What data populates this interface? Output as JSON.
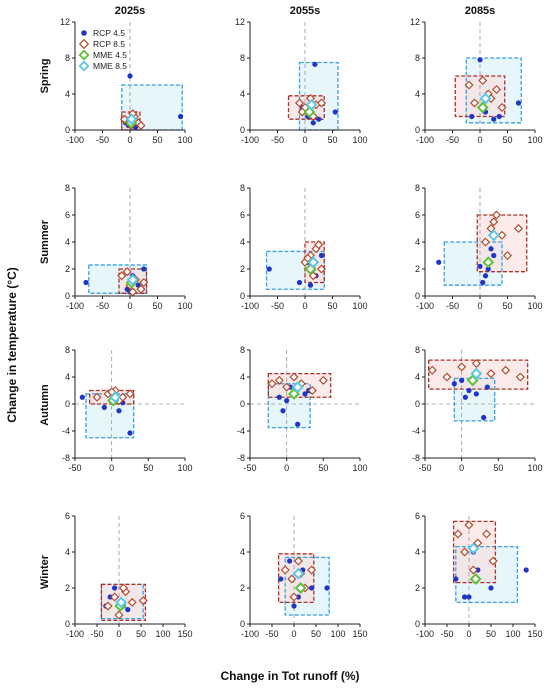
{
  "figure": {
    "ylabel": "Change in temperature (°C)",
    "xlabel": "Change in Tot runoff (%)",
    "columns": [
      "2025s",
      "2055s",
      "2085s"
    ],
    "rows": [
      "Spring",
      "Summer",
      "Autumn",
      "Winter"
    ],
    "legend": [
      "RCP 4.5",
      "RCP 8.5",
      "MME 4.5",
      "MME 8.5"
    ],
    "colors": {
      "rcp45": "#1f35c8",
      "rcp85": "#b5492a",
      "mme45": "#5cc23a",
      "mme85": "#5bc8e8",
      "box45": "#3aa0e0",
      "box85": "#a83228",
      "fill45": "#d6f0f8",
      "fill85": "#f8dcdc"
    }
  },
  "chart_data": [
    {
      "type": "scatter",
      "season": "Spring",
      "period": "2025s",
      "xlim": [
        -100,
        100
      ],
      "ylim": [
        0,
        12
      ],
      "xticks": [
        -100,
        -50,
        0,
        50,
        100
      ],
      "yticks": [
        0,
        4,
        8,
        12
      ],
      "series": [
        {
          "name": "RCP 4.5",
          "x": [
            0,
            5,
            92,
            -8,
            3,
            10,
            -3
          ],
          "y": [
            6,
            0.5,
            1.5,
            0.8,
            1.2,
            0.3,
            0.5
          ]
        },
        {
          "name": "RCP 8.5",
          "x": [
            -5,
            8,
            15,
            2,
            -10,
            20,
            5
          ],
          "y": [
            1,
            1.5,
            0.8,
            0.5,
            1.2,
            0.5,
            1.8
          ]
        },
        {
          "name": "MME 4.5",
          "x": [
            2
          ],
          "y": [
            0.8
          ]
        },
        {
          "name": "MME 8.5",
          "x": [
            3
          ],
          "y": [
            1.2
          ]
        }
      ],
      "box45": {
        "x": [
          -15,
          95
        ],
        "y": [
          0,
          5
        ]
      },
      "box85": {
        "x": [
          -15,
          18
        ],
        "y": [
          0,
          2
        ]
      }
    },
    {
      "type": "scatter",
      "season": "Spring",
      "period": "2055s",
      "xlim": [
        -100,
        100
      ],
      "ylim": [
        0,
        12
      ],
      "xticks": [
        -100,
        -50,
        0,
        50,
        100
      ],
      "yticks": [
        0,
        4,
        8,
        12
      ],
      "series": [
        {
          "name": "RCP 4.5",
          "x": [
            18,
            5,
            -5,
            25,
            10,
            15,
            55
          ],
          "y": [
            7.3,
            1.5,
            2.5,
            1.2,
            2,
            0.8,
            2
          ]
        },
        {
          "name": "RCP 8.5",
          "x": [
            -10,
            0,
            10,
            20,
            30,
            -5,
            15
          ],
          "y": [
            3,
            2.5,
            3.5,
            2.8,
            3,
            2,
            1.5
          ]
        },
        {
          "name": "MME 4.5",
          "x": [
            8
          ],
          "y": [
            2
          ]
        },
        {
          "name": "MME 8.5",
          "x": [
            12
          ],
          "y": [
            2.8
          ]
        }
      ],
      "box45": {
        "x": [
          -10,
          60
        ],
        "y": [
          0,
          7.5
        ]
      },
      "box85": {
        "x": [
          -30,
          35
        ],
        "y": [
          1.2,
          3.8
        ]
      }
    },
    {
      "type": "scatter",
      "season": "Spring",
      "period": "2085s",
      "xlim": [
        -100,
        100
      ],
      "ylim": [
        0,
        12
      ],
      "xticks": [
        -100,
        -50,
        0,
        50,
        100
      ],
      "yticks": [
        0,
        4,
        8,
        12
      ],
      "series": [
        {
          "name": "RCP 4.5",
          "x": [
            0,
            10,
            -15,
            25,
            70,
            5,
            35
          ],
          "y": [
            7.8,
            2,
            1.5,
            1.2,
            3,
            2.5,
            1.5
          ]
        },
        {
          "name": "RCP 8.5",
          "x": [
            -20,
            -10,
            5,
            15,
            30,
            20,
            40
          ],
          "y": [
            5,
            3,
            5.5,
            4,
            4.5,
            3.5,
            2.5
          ]
        },
        {
          "name": "MME 4.5",
          "x": [
            5
          ],
          "y": [
            2.5
          ]
        },
        {
          "name": "MME 8.5",
          "x": [
            10
          ],
          "y": [
            3.5
          ]
        }
      ],
      "box45": {
        "x": [
          -25,
          75
        ],
        "y": [
          0.8,
          8
        ]
      },
      "box85": {
        "x": [
          -45,
          45
        ],
        "y": [
          1.5,
          6
        ]
      }
    },
    {
      "type": "scatter",
      "season": "Summer",
      "period": "2025s",
      "xlim": [
        -100,
        100
      ],
      "ylim": [
        0,
        8
      ],
      "xticks": [
        -100,
        -50,
        0,
        50,
        100
      ],
      "yticks": [
        0,
        2,
        4,
        6,
        8
      ],
      "series": [
        {
          "name": "RCP 4.5",
          "x": [
            -80,
            -5,
            10,
            25,
            5,
            0,
            15
          ],
          "y": [
            1,
            0.5,
            1.2,
            2,
            1.5,
            0.3,
            0.8
          ]
        },
        {
          "name": "RCP 8.5",
          "x": [
            -15,
            0,
            10,
            20,
            -5,
            5,
            25
          ],
          "y": [
            1.5,
            0.8,
            1.2,
            0.5,
            1.8,
            0.3,
            1
          ]
        },
        {
          "name": "MME 4.5",
          "x": [
            3
          ],
          "y": [
            1
          ]
        },
        {
          "name": "MME 8.5",
          "x": [
            5
          ],
          "y": [
            1.2
          ]
        }
      ],
      "box45": {
        "x": [
          -75,
          30
        ],
        "y": [
          0.2,
          2.3
        ]
      },
      "box85": {
        "x": [
          -20,
          30
        ],
        "y": [
          0.2,
          2
        ]
      }
    },
    {
      "type": "scatter",
      "season": "Summer",
      "period": "2055s",
      "xlim": [
        -100,
        100
      ],
      "ylim": [
        0,
        8
      ],
      "xticks": [
        -100,
        -50,
        0,
        50,
        100
      ],
      "yticks": [
        0,
        2,
        4,
        6,
        8
      ],
      "series": [
        {
          "name": "RCP 4.5",
          "x": [
            -65,
            -10,
            5,
            20,
            30,
            10,
            15
          ],
          "y": [
            2,
            1,
            2.5,
            1.5,
            3,
            0.8,
            2
          ]
        },
        {
          "name": "RCP 8.5",
          "x": [
            0,
            10,
            20,
            30,
            15,
            5,
            25
          ],
          "y": [
            2.5,
            3,
            3.5,
            2,
            1.5,
            2.8,
            3.8
          ]
        },
        {
          "name": "MME 4.5",
          "x": [
            10
          ],
          "y": [
            2
          ]
        },
        {
          "name": "MME 8.5",
          "x": [
            15
          ],
          "y": [
            2.5
          ]
        }
      ],
      "box45": {
        "x": [
          -70,
          35
        ],
        "y": [
          0.5,
          3.3
        ]
      },
      "box85": {
        "x": [
          0,
          35
        ],
        "y": [
          1,
          4
        ]
      }
    },
    {
      "type": "scatter",
      "season": "Summer",
      "period": "2085s",
      "xlim": [
        -100,
        100
      ],
      "ylim": [
        0,
        8
      ],
      "xticks": [
        -100,
        -50,
        0,
        50,
        100
      ],
      "yticks": [
        0,
        2,
        4,
        6,
        8
      ],
      "series": [
        {
          "name": "RCP 4.5",
          "x": [
            -75,
            5,
            15,
            25,
            10,
            0,
            20
          ],
          "y": [
            2.5,
            1,
            2,
            3,
            1.5,
            2.2,
            3.5
          ]
        },
        {
          "name": "RCP 8.5",
          "x": [
            10,
            20,
            30,
            40,
            50,
            70,
            25
          ],
          "y": [
            4,
            5,
            6,
            4.5,
            3,
            5,
            5.5
          ]
        },
        {
          "name": "MME 4.5",
          "x": [
            15
          ],
          "y": [
            2.5
          ]
        },
        {
          "name": "MME 8.5",
          "x": [
            25
          ],
          "y": [
            4.5
          ]
        }
      ],
      "box45": {
        "x": [
          -65,
          40
        ],
        "y": [
          0.8,
          4
        ]
      },
      "box85": {
        "x": [
          -5,
          85
        ],
        "y": [
          1.8,
          6
        ]
      }
    },
    {
      "type": "scatter",
      "season": "Autumn",
      "period": "2025s",
      "xlim": [
        -50,
        100
      ],
      "ylim": [
        -8,
        8
      ],
      "xticks": [
        -50,
        0,
        50,
        100
      ],
      "yticks": [
        -8,
        -4,
        0,
        4,
        8
      ],
      "series": [
        {
          "name": "RCP 4.5",
          "x": [
            -40,
            25,
            0,
            5,
            -10,
            15,
            10
          ],
          "y": [
            1,
            -4.3,
            0.5,
            1,
            -0.5,
            0.2,
            -1
          ]
        },
        {
          "name": "RCP 8.5",
          "x": [
            -20,
            -5,
            5,
            15,
            25,
            10,
            0
          ],
          "y": [
            1,
            1.5,
            2,
            1,
            1.5,
            0.5,
            1.8
          ]
        },
        {
          "name": "MME 4.5",
          "x": [
            2
          ],
          "y": [
            0.5
          ]
        },
        {
          "name": "MME 8.5",
          "x": [
            5
          ],
          "y": [
            1
          ]
        }
      ],
      "box45": {
        "x": [
          -35,
          30
        ],
        "y": [
          -5,
          1.5
        ]
      },
      "box85": {
        "x": [
          -30,
          30
        ],
        "y": [
          0,
          2
        ]
      }
    },
    {
      "type": "scatter",
      "season": "Autumn",
      "period": "2055s",
      "xlim": [
        -50,
        100
      ],
      "ylim": [
        -8,
        8
      ],
      "xticks": [
        -50,
        0,
        50,
        100
      ],
      "yticks": [
        -8,
        -4,
        0,
        4,
        8
      ],
      "series": [
        {
          "name": "RCP 4.5",
          "x": [
            15,
            -10,
            5,
            25,
            0,
            30,
            -5
          ],
          "y": [
            -3,
            1,
            2.5,
            1.5,
            0.5,
            2,
            -1
          ]
        },
        {
          "name": "RCP 8.5",
          "x": [
            -20,
            -10,
            0,
            10,
            20,
            35,
            50
          ],
          "y": [
            3,
            3.5,
            2.5,
            4,
            3,
            2,
            3.5
          ]
        },
        {
          "name": "MME 4.5",
          "x": [
            10
          ],
          "y": [
            1.5
          ]
        },
        {
          "name": "MME 8.5",
          "x": [
            15
          ],
          "y": [
            2.5
          ]
        }
      ],
      "box45": {
        "x": [
          -25,
          32
        ],
        "y": [
          -3.5,
          3
        ]
      },
      "box85": {
        "x": [
          -25,
          60
        ],
        "y": [
          1,
          4.5
        ]
      }
    },
    {
      "type": "scatter",
      "season": "Autumn",
      "period": "2085s",
      "xlim": [
        -50,
        100
      ],
      "ylim": [
        -8,
        8
      ],
      "xticks": [
        -50,
        0,
        50,
        100
      ],
      "yticks": [
        -8,
        -4,
        0,
        4,
        8
      ],
      "series": [
        {
          "name": "RCP 4.5",
          "x": [
            30,
            -10,
            10,
            20,
            0,
            35,
            5
          ],
          "y": [
            -2,
            3,
            2,
            1.5,
            3.5,
            2.5,
            1
          ]
        },
        {
          "name": "RCP 8.5",
          "x": [
            -40,
            -20,
            0,
            20,
            40,
            60,
            80
          ],
          "y": [
            5,
            4,
            5.5,
            6,
            4.5,
            5,
            4
          ]
        },
        {
          "name": "MME 4.5",
          "x": [
            15
          ],
          "y": [
            3.5
          ]
        },
        {
          "name": "MME 8.5",
          "x": [
            20
          ],
          "y": [
            4.5
          ]
        }
      ],
      "box45": {
        "x": [
          -10,
          45
        ],
        "y": [
          -2.5,
          3.8
        ]
      },
      "box85": {
        "x": [
          -45,
          90
        ],
        "y": [
          2.2,
          6.5
        ]
      }
    },
    {
      "type": "scatter",
      "season": "Winter",
      "period": "2025s",
      "xlim": [
        -100,
        150
      ],
      "ylim": [
        0,
        6
      ],
      "xticks": [
        -100,
        -50,
        0,
        50,
        100,
        150
      ],
      "yticks": [
        0,
        2,
        4,
        6
      ],
      "series": [
        {
          "name": "RCP 4.5",
          "x": [
            -20,
            0,
            10,
            -10,
            20,
            5,
            -30
          ],
          "y": [
            1.5,
            0.5,
            1,
            2,
            0.8,
            1.2,
            1
          ]
        },
        {
          "name": "RCP 8.5",
          "x": [
            -25,
            -10,
            0,
            15,
            30,
            55,
            10
          ],
          "y": [
            1,
            1.5,
            0.5,
            1.8,
            1.2,
            1.3,
            2
          ]
        },
        {
          "name": "MME 4.5",
          "x": [
            3
          ],
          "y": [
            1
          ]
        },
        {
          "name": "MME 8.5",
          "x": [
            5
          ],
          "y": [
            1.2
          ]
        }
      ],
      "box45": {
        "x": [
          -40,
          55
        ],
        "y": [
          0.3,
          2.2
        ]
      },
      "box85": {
        "x": [
          -40,
          60
        ],
        "y": [
          0.2,
          2.2
        ]
      }
    },
    {
      "type": "scatter",
      "season": "Winter",
      "period": "2055s",
      "xlim": [
        -100,
        150
      ],
      "ylim": [
        0,
        6
      ],
      "xticks": [
        -100,
        -50,
        0,
        50,
        100,
        150
      ],
      "yticks": [
        0,
        2,
        4,
        6
      ],
      "series": [
        {
          "name": "RCP 4.5",
          "x": [
            -30,
            0,
            20,
            40,
            75,
            10,
            -10
          ],
          "y": [
            2.5,
            1,
            3,
            2,
            2,
            1.5,
            3.5
          ]
        },
        {
          "name": "RCP 8.5",
          "x": [
            -20,
            -5,
            10,
            25,
            40,
            0,
            15
          ],
          "y": [
            3,
            2.5,
            3.5,
            2,
            3,
            1.5,
            2.8
          ]
        },
        {
          "name": "MME 4.5",
          "x": [
            15
          ],
          "y": [
            2
          ]
        },
        {
          "name": "MME 8.5",
          "x": [
            10
          ],
          "y": [
            2.8
          ]
        }
      ],
      "box45": {
        "x": [
          -20,
          80
        ],
        "y": [
          0.5,
          3.7
        ]
      },
      "box85": {
        "x": [
          -35,
          45
        ],
        "y": [
          1.2,
          3.9
        ]
      }
    },
    {
      "type": "scatter",
      "season": "Winter",
      "period": "2085s",
      "xlim": [
        -100,
        150
      ],
      "ylim": [
        0,
        6
      ],
      "xticks": [
        -100,
        -50,
        0,
        50,
        100,
        150
      ],
      "yticks": [
        0,
        2,
        4,
        6
      ],
      "series": [
        {
          "name": "RCP 4.5",
          "x": [
            -30,
            0,
            20,
            50,
            130,
            10,
            -10
          ],
          "y": [
            2.5,
            1.5,
            3,
            2,
            3,
            4,
            1.5
          ]
        },
        {
          "name": "RCP 8.5",
          "x": [
            -25,
            -10,
            0,
            20,
            40,
            55,
            10
          ],
          "y": [
            5,
            4,
            5.5,
            4.5,
            5,
            3.5,
            3
          ]
        },
        {
          "name": "MME 4.5",
          "x": [
            15
          ],
          "y": [
            2.5
          ]
        },
        {
          "name": "MME 8.5",
          "x": [
            10
          ],
          "y": [
            4.2
          ]
        }
      ],
      "box45": {
        "x": [
          -30,
          110
        ],
        "y": [
          1.2,
          4.3
        ]
      },
      "box85": {
        "x": [
          -35,
          60
        ],
        "y": [
          2.3,
          5.7
        ]
      }
    }
  ]
}
